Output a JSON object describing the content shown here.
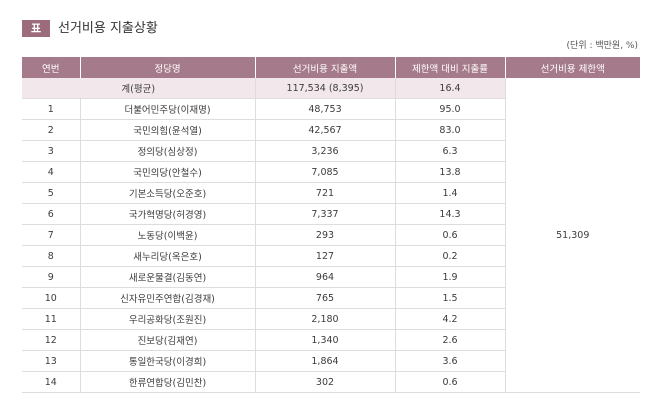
{
  "header": {
    "badge": "표",
    "title": "선거비용 지출상황",
    "unit": "(단위 : 백만원, %)"
  },
  "table": {
    "columns": [
      "연번",
      "정당명",
      "선거비용 지출액",
      "제한액 대비 지출률",
      "선거비용 제한액"
    ],
    "total": {
      "label": "계(평균)",
      "spending": "117,534 (8,395)",
      "rate": "16.4"
    },
    "limit": "51,309",
    "rows": [
      [
        "1",
        "더불어민주당(이재명)",
        "48,753",
        "95.0"
      ],
      [
        "2",
        "국민의힘(윤석열)",
        "42,567",
        "83.0"
      ],
      [
        "3",
        "정의당(심상정)",
        "3,236",
        "6.3"
      ],
      [
        "4",
        "국민의당(안철수)",
        "7,085",
        "13.8"
      ],
      [
        "5",
        "기본소득당(오준호)",
        "721",
        "1.4"
      ],
      [
        "6",
        "국가혁명당(허경영)",
        "7,337",
        "14.3"
      ],
      [
        "7",
        "노동당(이백윤)",
        "293",
        "0.6"
      ],
      [
        "8",
        "새누리당(옥은호)",
        "127",
        "0.2"
      ],
      [
        "9",
        "새로운물결(김동연)",
        "964",
        "1.9"
      ],
      [
        "10",
        "신자유민주연합(김경재)",
        "765",
        "1.5"
      ],
      [
        "11",
        "우리공화당(조원진)",
        "2,180",
        "4.2"
      ],
      [
        "12",
        "진보당(김재연)",
        "1,340",
        "2.6"
      ],
      [
        "13",
        "통일한국당(이경희)",
        "1,864",
        "3.6"
      ],
      [
        "14",
        "한류연합당(김민찬)",
        "302",
        "0.6"
      ]
    ]
  }
}
